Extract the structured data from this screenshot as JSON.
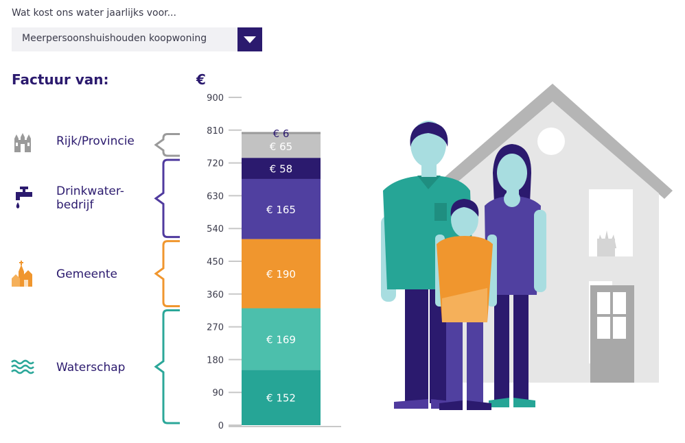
{
  "question": "Wat kost ons water jaarlijks voor...",
  "selector": {
    "value": "Meerpersoonshuishouden koopwoning"
  },
  "heading": "Factuur van:",
  "categories": [
    {
      "label": "Rijk/Provincie",
      "icon": "building-icon",
      "color": "#9a9a9a"
    },
    {
      "label": "Drinkwater-\nbedrijf",
      "icon": "tap-icon",
      "color": "#4f3a9e"
    },
    {
      "label": "Gemeente",
      "icon": "church-icon",
      "color": "#f0962e"
    },
    {
      "label": "Waterschap",
      "icon": "waves-icon",
      "color": "#2ba799"
    }
  ],
  "chart_data": {
    "type": "bar",
    "ylabel": "€",
    "ylim": [
      0,
      900
    ],
    "yticks": [
      0,
      90,
      180,
      270,
      360,
      450,
      540,
      630,
      720,
      810,
      900
    ],
    "stacked": true,
    "segments": [
      {
        "category": "Waterschap",
        "value": 152,
        "label": "€ 152",
        "color": "#26a596"
      },
      {
        "category": "Waterschap",
        "value": 169,
        "label": "€ 169",
        "color": "#4cbfac"
      },
      {
        "category": "Gemeente",
        "value": 190,
        "label": "€ 190",
        "color": "#f0962e"
      },
      {
        "category": "Drinkwaterbedrijf",
        "value": 165,
        "label": "€ 165",
        "color": "#5040a0"
      },
      {
        "category": "Drinkwaterbedrijf",
        "value": 58,
        "label": "€ 58",
        "color": "#2b1a6e"
      },
      {
        "category": "Rijk/Provincie",
        "value": 65,
        "label": "€ 65",
        "color": "#c2c2c2"
      },
      {
        "category": "Rijk/Provincie",
        "value": 6,
        "label": "€ 6",
        "color": "#9b9b9b"
      }
    ]
  }
}
